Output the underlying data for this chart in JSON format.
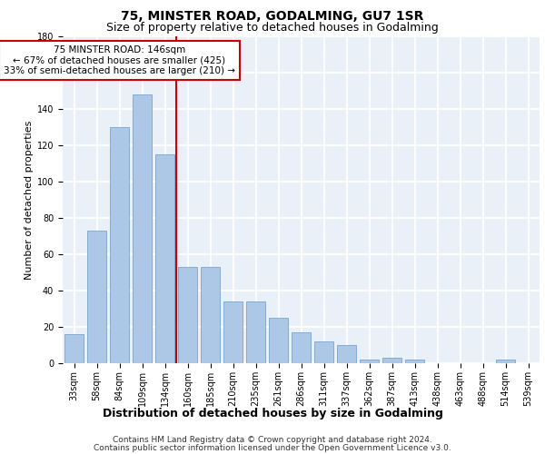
{
  "title": "75, MINSTER ROAD, GODALMING, GU7 1SR",
  "subtitle": "Size of property relative to detached houses in Godalming",
  "xlabel": "Distribution of detached houses by size in Godalming",
  "ylabel": "Number of detached properties",
  "categories": [
    "33sqm",
    "58sqm",
    "84sqm",
    "109sqm",
    "134sqm",
    "160sqm",
    "185sqm",
    "210sqm",
    "235sqm",
    "261sqm",
    "286sqm",
    "311sqm",
    "337sqm",
    "362sqm",
    "387sqm",
    "413sqm",
    "438sqm",
    "463sqm",
    "488sqm",
    "514sqm",
    "539sqm"
  ],
  "values": [
    16,
    73,
    130,
    148,
    115,
    53,
    53,
    34,
    34,
    25,
    17,
    12,
    10,
    2,
    3,
    2,
    0,
    0,
    0,
    2,
    0
  ],
  "bar_color": "#adc8e6",
  "bar_edge_color": "#6699cc",
  "red_line_index": 4.5,
  "annotation_text": "75 MINSTER ROAD: 146sqm\n← 67% of detached houses are smaller (425)\n33% of semi-detached houses are larger (210) →",
  "annotation_box_color": "#ffffff",
  "annotation_box_edge": "#cc0000",
  "ylim": [
    0,
    180
  ],
  "yticks": [
    0,
    20,
    40,
    60,
    80,
    100,
    120,
    140,
    160,
    180
  ],
  "footer_line1": "Contains HM Land Registry data © Crown copyright and database right 2024.",
  "footer_line2": "Contains public sector information licensed under the Open Government Licence v3.0.",
  "background_color": "#eaf0f8",
  "grid_color": "#ffffff",
  "title_fontsize": 10,
  "subtitle_fontsize": 9,
  "ylabel_fontsize": 8,
  "xlabel_fontsize": 9,
  "tick_fontsize": 7,
  "footer_fontsize": 6.5,
  "annotation_fontsize": 7.5
}
